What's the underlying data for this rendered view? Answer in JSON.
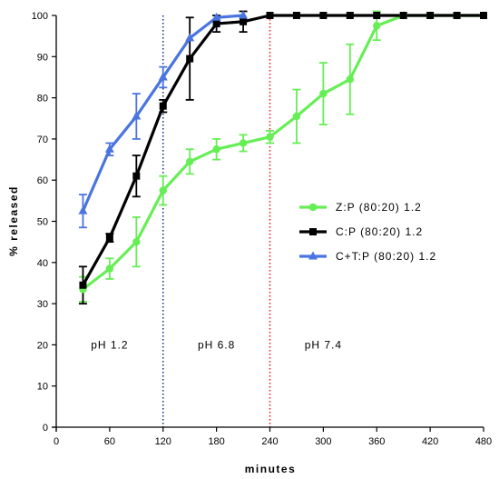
{
  "chart_data": {
    "type": "line",
    "title": "",
    "xlabel": "minutes",
    "ylabel": "% released",
    "xlim": [
      0,
      480
    ],
    "ylim": [
      0,
      100
    ],
    "x_ticks": [
      0,
      60,
      120,
      180,
      240,
      300,
      360,
      420,
      480
    ],
    "y_ticks": [
      0,
      10,
      20,
      30,
      40,
      50,
      60,
      70,
      80,
      90,
      100
    ],
    "grid": false,
    "legend_position": "center-right",
    "phase_lines": [
      {
        "x": 120,
        "color": "#1f2f8f",
        "style": "dotted"
      },
      {
        "x": 240,
        "color": "#e02020",
        "style": "dotted"
      }
    ],
    "phase_labels": [
      {
        "text": "pH 1.2",
        "x": 60,
        "y": 20
      },
      {
        "text": "pH 6.8",
        "x": 180,
        "y": 20
      },
      {
        "text": "pH 7.4",
        "x": 300,
        "y": 20
      }
    ],
    "series": [
      {
        "name": "Z:P (80:20) 1.2",
        "color": "#66ee55",
        "marker": "circle",
        "x": [
          30,
          60,
          90,
          120,
          150,
          180,
          210,
          240,
          270,
          300,
          330,
          360,
          390,
          420,
          450,
          480
        ],
        "y": [
          33.5,
          38.5,
          45,
          57.5,
          64.5,
          67.5,
          69,
          70.5,
          75.5,
          81,
          84.5,
          97.5,
          100,
          100,
          100,
          100
        ],
        "err": [
          3,
          2.5,
          6,
          3.5,
          3,
          2.5,
          2,
          1.5,
          6.5,
          7.5,
          8.5,
          3.5,
          0,
          0,
          0,
          0
        ]
      },
      {
        "name": "C:P (80:20) 1.2",
        "color": "#000000",
        "marker": "square",
        "x": [
          30,
          60,
          90,
          120,
          150,
          180,
          210,
          240,
          270,
          300,
          330,
          360,
          390,
          420,
          450,
          480
        ],
        "y": [
          34.5,
          46,
          61,
          78,
          89.5,
          98,
          98.5,
          100,
          100,
          100,
          100,
          100,
          100,
          100,
          100,
          100
        ],
        "err": [
          4.5,
          1,
          5,
          1.5,
          10,
          2,
          2.5,
          0,
          0,
          0,
          0,
          0,
          0,
          0,
          0,
          0
        ]
      },
      {
        "name": "C+T:P (80:20) 1.2",
        "color": "#4a74e0",
        "marker": "triangle",
        "x": [
          30,
          60,
          90,
          120,
          150,
          180,
          210
        ],
        "y": [
          52.5,
          67.5,
          75.5,
          85,
          94.5,
          99.5,
          100
        ],
        "err": [
          4,
          1.5,
          5.5,
          2.5,
          0,
          0,
          0
        ]
      }
    ]
  }
}
